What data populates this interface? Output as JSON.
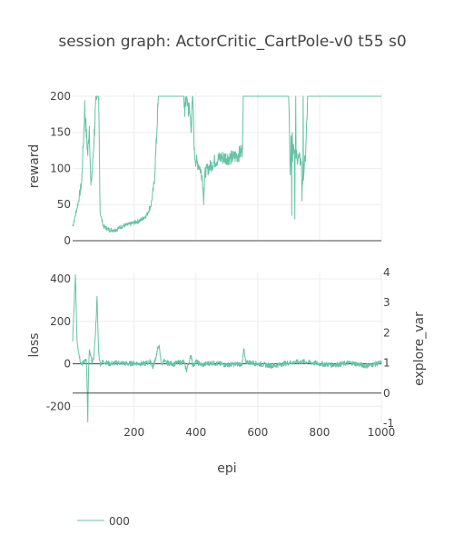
{
  "chart_data": {
    "type": "line",
    "title": "session graph: ActorCritic_CartPole-v0 t55 s0",
    "xlabel": "epi",
    "x_ticks": [
      200,
      400,
      600,
      800,
      1000
    ],
    "xlim": [
      1,
      1000
    ],
    "color": "#66c2a5",
    "legend": [
      "000"
    ],
    "panels": [
      {
        "ylabel": "reward",
        "ylim": [
          0,
          205
        ],
        "y_ticks": [
          0,
          50,
          100,
          150,
          200
        ],
        "keypoints": [
          [
            1,
            20
          ],
          [
            10,
            35
          ],
          [
            20,
            55
          ],
          [
            30,
            80
          ],
          [
            35,
            130
          ],
          [
            40,
            185
          ],
          [
            45,
            150
          ],
          [
            50,
            120
          ],
          [
            55,
            160
          ],
          [
            60,
            75
          ],
          [
            65,
            100
          ],
          [
            70,
            140
          ],
          [
            75,
            180
          ],
          [
            80,
            200
          ],
          [
            85,
            200
          ],
          [
            90,
            40
          ],
          [
            100,
            20
          ],
          [
            120,
            15
          ],
          [
            140,
            15
          ],
          [
            160,
            20
          ],
          [
            180,
            22
          ],
          [
            200,
            25
          ],
          [
            220,
            28
          ],
          [
            240,
            35
          ],
          [
            255,
            50
          ],
          [
            265,
            80
          ],
          [
            270,
            120
          ],
          [
            275,
            170
          ],
          [
            280,
            200
          ],
          [
            360,
            200
          ],
          [
            365,
            180
          ],
          [
            370,
            200
          ],
          [
            380,
            175
          ],
          [
            385,
            160
          ],
          [
            390,
            200
          ],
          [
            395,
            120
          ],
          [
            400,
            110
          ],
          [
            410,
            105
          ],
          [
            420,
            90
          ],
          [
            425,
            60
          ],
          [
            430,
            95
          ],
          [
            440,
            100
          ],
          [
            460,
            110
          ],
          [
            480,
            115
          ],
          [
            500,
            115
          ],
          [
            520,
            115
          ],
          [
            540,
            120
          ],
          [
            550,
            125
          ],
          [
            553,
            200
          ],
          [
            700,
            200
          ],
          [
            705,
            100
          ],
          [
            710,
            155
          ],
          [
            720,
            120
          ],
          [
            730,
            115
          ],
          [
            740,
            110
          ],
          [
            745,
            80
          ],
          [
            750,
            100
          ],
          [
            755,
            120
          ],
          [
            762,
            200
          ],
          [
            1000,
            200
          ]
        ],
        "spikes": [
          [
            710,
            35
          ],
          [
            713,
            110
          ],
          [
            720,
            30
          ],
          [
            723,
            200
          ],
          [
            743,
            55
          ],
          [
            747,
            200
          ],
          [
            425,
            50
          ]
        ]
      },
      {
        "ylabel": "loss",
        "ylim": [
          -280,
          430
        ],
        "y_ticks": [
          -200,
          0,
          200,
          400
        ],
        "keypoints": [
          [
            1,
            100
          ],
          [
            5,
            250
          ],
          [
            10,
            420
          ],
          [
            15,
            120
          ],
          [
            20,
            60
          ],
          [
            25,
            20
          ],
          [
            30,
            0
          ],
          [
            40,
            10
          ],
          [
            45,
            30
          ],
          [
            48,
            -120
          ],
          [
            50,
            -280
          ],
          [
            52,
            -60
          ],
          [
            55,
            60
          ],
          [
            60,
            30
          ],
          [
            65,
            0
          ],
          [
            70,
            40
          ],
          [
            75,
            150
          ],
          [
            80,
            310
          ],
          [
            85,
            60
          ],
          [
            90,
            0
          ],
          [
            100,
            10
          ],
          [
            110,
            5
          ],
          [
            120,
            0
          ],
          [
            150,
            5
          ],
          [
            180,
            0
          ],
          [
            200,
            3
          ],
          [
            230,
            0
          ],
          [
            255,
            10
          ],
          [
            260,
            -20
          ],
          [
            270,
            30
          ],
          [
            275,
            60
          ],
          [
            280,
            90
          ],
          [
            285,
            30
          ],
          [
            290,
            -10
          ],
          [
            295,
            20
          ],
          [
            300,
            5
          ],
          [
            330,
            0
          ],
          [
            360,
            10
          ],
          [
            370,
            -30
          ],
          [
            380,
            20
          ],
          [
            385,
            40
          ],
          [
            390,
            -10
          ],
          [
            400,
            10
          ],
          [
            420,
            -5
          ],
          [
            450,
            5
          ],
          [
            500,
            -5
          ],
          [
            550,
            0
          ],
          [
            555,
            70
          ],
          [
            560,
            10
          ],
          [
            600,
            0
          ],
          [
            650,
            -10
          ],
          [
            700,
            5
          ],
          [
            750,
            10
          ],
          [
            800,
            0
          ],
          [
            850,
            -5
          ],
          [
            900,
            5
          ],
          [
            950,
            -10
          ],
          [
            1000,
            5
          ]
        ],
        "noise": 12
      }
    ],
    "right_axis": {
      "label": "explore_var",
      "ylim": [
        -1,
        4
      ],
      "y_ticks": [
        -1,
        0,
        1,
        2,
        3,
        4
      ],
      "constant_value": 1
    }
  }
}
